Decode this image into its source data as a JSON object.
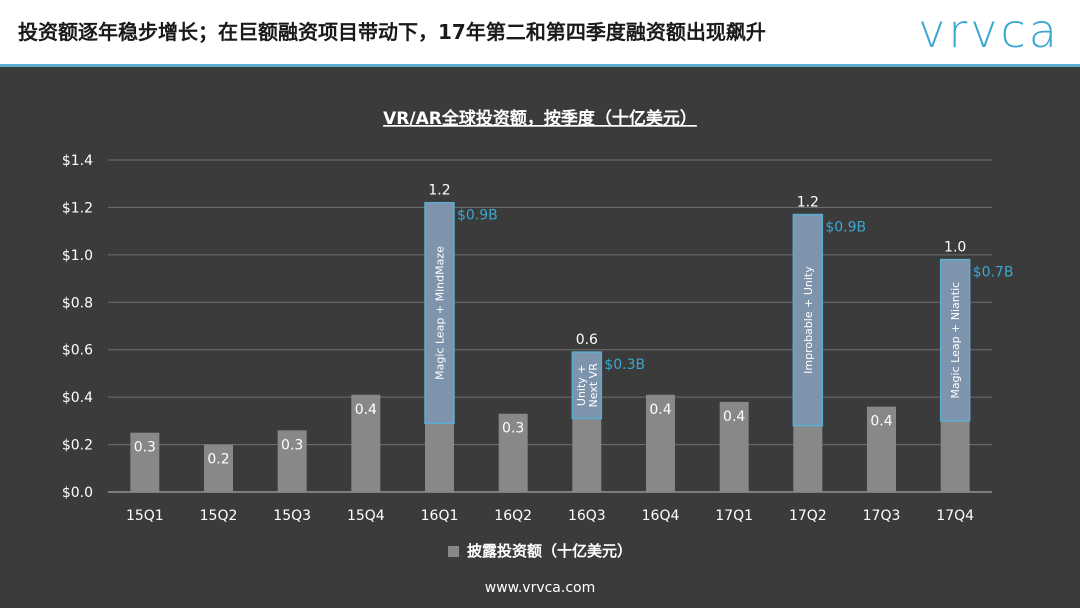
{
  "header": {
    "title": "投资额逐年稳步增长；在巨额融资项目带动下，17年第二和第四季度融资额出现飙升",
    "logo": "vrvca"
  },
  "footer": {
    "url": "www.vrvca.com"
  },
  "colors": {
    "background": "#3b3b3b",
    "bar_base": "#888888",
    "bar_highlight": "#7e94ad",
    "highlight_border": "#5aaecf",
    "delta_label": "#3aa7cf",
    "header_line": "#5aaecf"
  },
  "chart_data": {
    "type": "bar",
    "title": "VR/AR全球投资额，按季度（十亿美元）",
    "ylim": [
      0,
      1.4
    ],
    "yticks": [
      "$0.0",
      "$0.2",
      "$0.4",
      "$0.6",
      "$0.8",
      "$1.0",
      "$1.2",
      "$1.4"
    ],
    "ytick_values": [
      0,
      0.2,
      0.4,
      0.6,
      0.8,
      1.0,
      1.2,
      1.4
    ],
    "grid": true,
    "legend": {
      "position": "bottom",
      "label": "披露投资额（十亿美元）"
    },
    "categories": [
      "15Q1",
      "15Q2",
      "15Q3",
      "15Q4",
      "16Q1",
      "16Q2",
      "16Q3",
      "16Q4",
      "17Q1",
      "17Q2",
      "17Q3",
      "17Q4"
    ],
    "series": [
      {
        "name": "披露投资额（十亿美元）",
        "values": [
          0.25,
          0.2,
          0.26,
          0.41,
          1.22,
          0.33,
          0.59,
          0.41,
          0.38,
          1.17,
          0.36,
          0.98
        ],
        "labels": [
          "0.3",
          "0.2",
          "0.3",
          "0.4",
          "1.2",
          "0.3",
          "0.6",
          "0.4",
          "0.4",
          "1.2",
          "0.4",
          "1.0"
        ]
      }
    ],
    "highlights": [
      {
        "category": "16Q1",
        "base": 0.29,
        "top": 1.22,
        "delta_label": "$0.9B",
        "text": "Magic Leap + MindMaze"
      },
      {
        "category": "16Q3",
        "base": 0.31,
        "top": 0.59,
        "delta_label": "$0.3B",
        "text": "Unity + Next VR"
      },
      {
        "category": "17Q2",
        "base": 0.28,
        "top": 1.17,
        "delta_label": "$0.9B",
        "text": "Improbable + Unity"
      },
      {
        "category": "17Q4",
        "base": 0.3,
        "top": 0.98,
        "delta_label": "$0.7B",
        "text": "Magic Leap + Niantic"
      }
    ]
  }
}
